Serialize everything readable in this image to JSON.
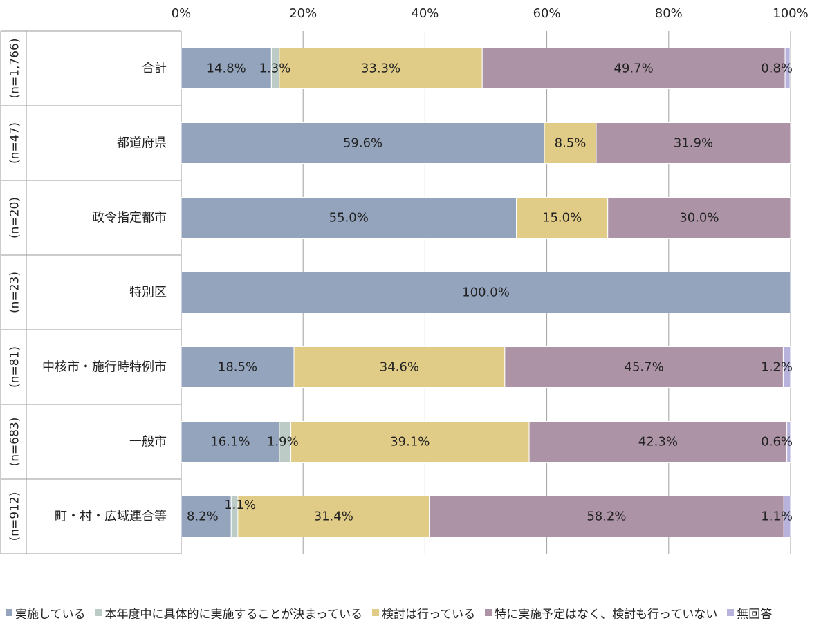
{
  "chart_data": {
    "type": "bar",
    "orientation": "horizontal",
    "stacked": true,
    "normalized": true,
    "xlim": [
      0,
      100
    ],
    "x_ticks": [
      "0%",
      "20%",
      "40%",
      "60%",
      "80%",
      "100%"
    ],
    "grid": true,
    "legend_position": "bottom",
    "categories": [
      "合計",
      "都道府県",
      "政令指定都市",
      "特別区",
      "中核市・施行時特例市",
      "一般市",
      "町・村・広域連合等"
    ],
    "sample_sizes": [
      "(n=1,766)",
      "(n=47)",
      "(n=20)",
      "(n=23)",
      "(n=81)",
      "(n=683)",
      "(n=912)"
    ],
    "series": [
      {
        "name": "実施している",
        "color": "#94a4bd",
        "values": [
          14.8,
          59.6,
          55.0,
          100.0,
          18.5,
          16.1,
          8.2
        ],
        "labels": [
          "14.8%",
          "59.6%",
          "55.0%",
          "100.0%",
          "18.5%",
          "16.1%",
          "8.2%"
        ]
      },
      {
        "name": "本年度中に具体的に実施することが決まっている",
        "color": "#bccbc6",
        "values": [
          1.3,
          0,
          0,
          0,
          0,
          1.9,
          1.1
        ],
        "labels": [
          "1.3%",
          "",
          "",
          "",
          "",
          "1.9%",
          "1.1%"
        ]
      },
      {
        "name": "検討は行っている",
        "color": "#e0cc87",
        "values": [
          33.3,
          8.5,
          15.0,
          0,
          34.6,
          39.1,
          31.4
        ],
        "labels": [
          "33.3%",
          "8.5%",
          "15.0%",
          "",
          "34.6%",
          "39.1%",
          "31.4%"
        ]
      },
      {
        "name": "特に実施予定はなく、検討も行っていない",
        "color": "#ac94a6",
        "values": [
          49.7,
          31.9,
          30.0,
          0,
          45.7,
          42.3,
          58.2
        ],
        "labels": [
          "49.7%",
          "31.9%",
          "30.0%",
          "",
          "45.7%",
          "42.3%",
          "58.2%"
        ]
      },
      {
        "name": "無回答",
        "color": "#b7b3dc",
        "values": [
          0.8,
          0,
          0,
          0,
          1.2,
          0.6,
          1.1
        ],
        "labels": [
          "0.8%",
          "",
          "",
          "",
          "1.2%",
          "0.6%",
          "1.1%"
        ]
      }
    ]
  }
}
